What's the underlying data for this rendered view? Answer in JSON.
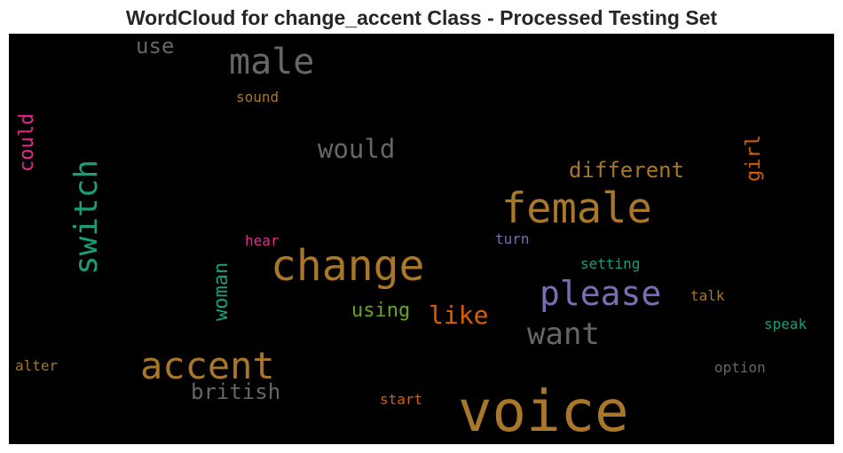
{
  "title": "WordCloud for change_accent Class - Processed Testing Set",
  "chart_data": {
    "type": "wordcloud",
    "title": "WordCloud for change_accent Class - Processed Testing Set",
    "background": "#000000",
    "words": [
      {
        "text": "voice",
        "color": "#a8772a",
        "vertical": false
      },
      {
        "text": "change",
        "color": "#a8772a",
        "vertical": false
      },
      {
        "text": "female",
        "color": "#a8772a",
        "vertical": false
      },
      {
        "text": "accent",
        "color": "#a8772a",
        "vertical": false
      },
      {
        "text": "please",
        "color": "#7570b3",
        "vertical": false
      },
      {
        "text": "male",
        "color": "#666666",
        "vertical": false
      },
      {
        "text": "switch",
        "color": "#1b9e77",
        "vertical": true
      },
      {
        "text": "want",
        "color": "#666666",
        "vertical": false
      },
      {
        "text": "like",
        "color": "#d95f02",
        "vertical": false
      },
      {
        "text": "would",
        "color": "#666666",
        "vertical": false
      },
      {
        "text": "different",
        "color": "#a8772a",
        "vertical": false
      },
      {
        "text": "british",
        "color": "#666666",
        "vertical": false
      },
      {
        "text": "using",
        "color": "#66a61e",
        "vertical": false
      },
      {
        "text": "woman",
        "color": "#1b9e77",
        "vertical": true
      },
      {
        "text": "could",
        "color": "#e7298a",
        "vertical": true
      },
      {
        "text": "girl",
        "color": "#d95f02",
        "vertical": true
      },
      {
        "text": "use",
        "color": "#666666",
        "vertical": false
      },
      {
        "text": "sound",
        "color": "#a8772a",
        "vertical": false
      },
      {
        "text": "hear",
        "color": "#e7298a",
        "vertical": false
      },
      {
        "text": "turn",
        "color": "#7570b3",
        "vertical": false
      },
      {
        "text": "setting",
        "color": "#1b9e77",
        "vertical": false
      },
      {
        "text": "talk",
        "color": "#a8772a",
        "vertical": false
      },
      {
        "text": "speak",
        "color": "#1b9e77",
        "vertical": false
      },
      {
        "text": "option",
        "color": "#666666",
        "vertical": false
      },
      {
        "text": "alter",
        "color": "#a8772a",
        "vertical": false
      },
      {
        "text": "start",
        "color": "#d95f02",
        "vertical": false
      }
    ]
  }
}
